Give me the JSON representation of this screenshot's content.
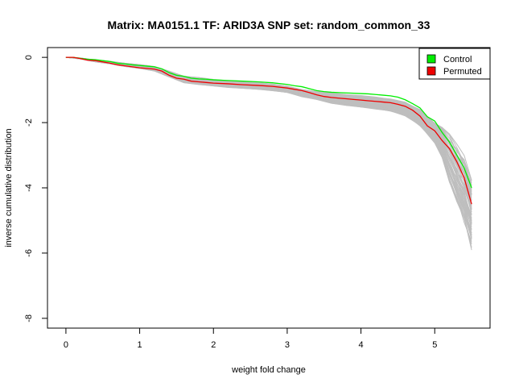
{
  "chart_data": {
    "type": "line",
    "title": "Matrix: MA0151.1 TF: ARID3A SNP set: random_common_33",
    "xlabel": "weight fold change",
    "ylabel": "inverse cumulative distribution",
    "xlim": [
      -0.25,
      5.75
    ],
    "ylim": [
      -8.3,
      0.3
    ],
    "x_ticks": [
      0,
      1,
      2,
      3,
      4,
      5
    ],
    "x_tick_labels": [
      "0",
      "1",
      "2",
      "3",
      "4",
      "5"
    ],
    "y_ticks": [
      0,
      -2,
      -4,
      -6,
      -8
    ],
    "y_tick_labels": [
      "0",
      "-2",
      "-4",
      "-6",
      "-8"
    ],
    "grid": false,
    "legend": {
      "position": "top-right",
      "entries": [
        {
          "label": "Control",
          "color": "#00ee00"
        },
        {
          "label": "Permuted",
          "color": "#ee0000"
        }
      ]
    },
    "background_band": {
      "color": "#bebebe",
      "description_series_count": 50,
      "x": [
        0,
        0.2,
        0.4,
        0.6,
        0.8,
        1.0,
        1.2,
        1.4,
        1.6,
        1.8,
        2.0,
        2.2,
        2.4,
        2.6,
        2.8,
        3.0,
        3.2,
        3.4,
        3.6,
        3.8,
        4.0,
        4.2,
        4.4,
        4.6,
        4.8,
        5.0,
        5.1,
        5.2,
        5.3,
        5.4,
        5.5
      ],
      "upper": [
        0,
        -0.02,
        -0.08,
        -0.12,
        -0.18,
        -0.22,
        -0.28,
        -0.42,
        -0.58,
        -0.62,
        -0.68,
        -0.72,
        -0.75,
        -0.78,
        -0.82,
        -0.88,
        -0.98,
        -1.05,
        -1.1,
        -1.15,
        -1.18,
        -1.22,
        -1.28,
        -1.38,
        -1.6,
        -2.0,
        -2.15,
        -2.4,
        -2.75,
        -3.1,
        -3.8
      ],
      "lower": [
        0,
        -0.05,
        -0.14,
        -0.2,
        -0.28,
        -0.34,
        -0.42,
        -0.6,
        -0.78,
        -0.83,
        -0.88,
        -0.92,
        -0.95,
        -0.98,
        -1.02,
        -1.08,
        -1.2,
        -1.3,
        -1.4,
        -1.48,
        -1.52,
        -1.58,
        -1.65,
        -1.78,
        -2.1,
        -2.6,
        -3.1,
        -3.8,
        -4.4,
        -5.0,
        -5.8
      ]
    },
    "series": [
      {
        "name": "Control",
        "color": "#00ee00",
        "x": [
          0,
          0.1,
          0.2,
          0.3,
          0.4,
          0.5,
          0.6,
          0.7,
          0.8,
          0.9,
          1.0,
          1.1,
          1.2,
          1.3,
          1.4,
          1.5,
          1.6,
          1.7,
          1.8,
          1.9,
          2.0,
          2.2,
          2.4,
          2.6,
          2.8,
          3.0,
          3.1,
          3.2,
          3.3,
          3.4,
          3.5,
          3.6,
          3.7,
          3.8,
          3.9,
          4.0,
          4.1,
          4.2,
          4.3,
          4.4,
          4.5,
          4.6,
          4.7,
          4.8,
          4.9,
          5.0,
          5.1,
          5.2,
          5.3,
          5.4,
          5.5
        ],
        "y": [
          0,
          0,
          -0.03,
          -0.06,
          -0.07,
          -0.1,
          -0.13,
          -0.18,
          -0.2,
          -0.23,
          -0.25,
          -0.27,
          -0.29,
          -0.35,
          -0.47,
          -0.55,
          -0.58,
          -0.64,
          -0.66,
          -0.67,
          -0.69,
          -0.71,
          -0.73,
          -0.75,
          -0.78,
          -0.83,
          -0.87,
          -0.9,
          -0.96,
          -1.02,
          -1.05,
          -1.07,
          -1.08,
          -1.09,
          -1.1,
          -1.11,
          -1.12,
          -1.14,
          -1.16,
          -1.18,
          -1.22,
          -1.3,
          -1.42,
          -1.55,
          -1.82,
          -1.95,
          -2.3,
          -2.6,
          -3.0,
          -3.4,
          -4.0
        ]
      },
      {
        "name": "Permuted",
        "color": "#ee0000",
        "x": [
          0,
          0.1,
          0.2,
          0.3,
          0.4,
          0.5,
          0.6,
          0.7,
          0.8,
          0.9,
          1.0,
          1.1,
          1.2,
          1.3,
          1.4,
          1.5,
          1.6,
          1.7,
          1.8,
          1.9,
          2.0,
          2.2,
          2.4,
          2.6,
          2.8,
          3.0,
          3.1,
          3.2,
          3.3,
          3.4,
          3.5,
          3.6,
          3.7,
          3.8,
          3.9,
          4.0,
          4.1,
          4.2,
          4.3,
          4.4,
          4.5,
          4.6,
          4.7,
          4.8,
          4.9,
          5.0,
          5.1,
          5.2,
          5.3,
          5.4,
          5.5
        ],
        "y": [
          0,
          0,
          -0.04,
          -0.09,
          -0.1,
          -0.14,
          -0.18,
          -0.23,
          -0.26,
          -0.29,
          -0.32,
          -0.34,
          -0.36,
          -0.42,
          -0.55,
          -0.64,
          -0.67,
          -0.73,
          -0.75,
          -0.77,
          -0.79,
          -0.81,
          -0.84,
          -0.86,
          -0.89,
          -0.94,
          -0.98,
          -1.02,
          -1.08,
          -1.15,
          -1.2,
          -1.23,
          -1.25,
          -1.27,
          -1.29,
          -1.31,
          -1.33,
          -1.35,
          -1.37,
          -1.39,
          -1.44,
          -1.5,
          -1.62,
          -1.8,
          -2.1,
          -2.25,
          -2.55,
          -2.8,
          -3.2,
          -3.7,
          -4.5
        ]
      }
    ]
  }
}
